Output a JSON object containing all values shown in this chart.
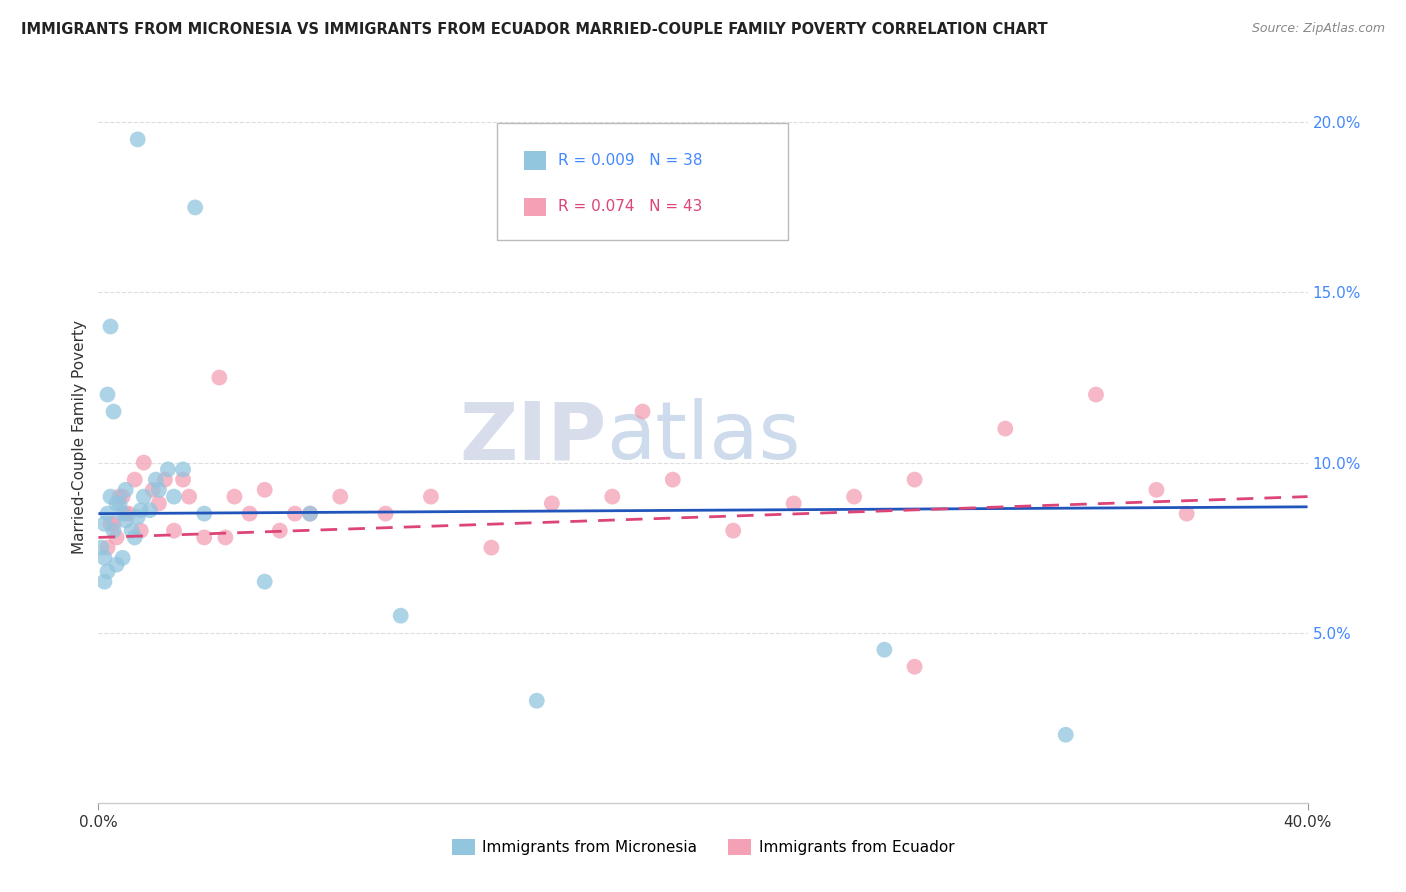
{
  "title": "IMMIGRANTS FROM MICRONESIA VS IMMIGRANTS FROM ECUADOR MARRIED-COUPLE FAMILY POVERTY CORRELATION CHART",
  "source": "Source: ZipAtlas.com",
  "ylabel": "Married-Couple Family Poverty",
  "xlim": [
    0.0,
    40.0
  ],
  "ylim": [
    0.0,
    21.5
  ],
  "yticks": [
    5.0,
    10.0,
    15.0,
    20.0
  ],
  "color_blue": "#92c5de",
  "color_pink": "#f4a0b5",
  "color_line_blue": "#2255bb",
  "color_line_pink": "#dd4477",
  "watermark_zip": "ZIP",
  "watermark_atlas": "atlas",
  "micronesia_x": [
    1.3,
    3.2,
    0.3,
    0.5,
    0.7,
    0.9,
    1.1,
    1.5,
    1.7,
    2.0,
    1.2,
    2.3,
    0.8,
    0.6,
    1.4,
    1.9,
    2.8,
    1.3,
    0.4,
    0.5,
    2.5,
    0.2,
    0.3,
    0.4,
    0.2,
    0.6,
    0.8,
    0.9,
    3.5,
    5.5,
    7.0,
    10.0,
    14.5,
    26.0,
    32.0,
    0.1,
    0.2,
    0.3
  ],
  "micronesia_y": [
    19.5,
    17.5,
    12.0,
    11.5,
    8.8,
    8.3,
    8.0,
    9.0,
    8.6,
    9.2,
    7.8,
    9.8,
    7.2,
    7.0,
    8.6,
    9.5,
    9.8,
    8.4,
    14.0,
    8.0,
    9.0,
    8.2,
    8.5,
    9.0,
    6.5,
    8.8,
    8.5,
    9.2,
    8.5,
    6.5,
    8.5,
    5.5,
    3.0,
    4.5,
    2.0,
    7.5,
    7.2,
    6.8
  ],
  "ecuador_x": [
    0.4,
    0.6,
    0.8,
    1.0,
    1.2,
    1.5,
    1.8,
    2.0,
    2.2,
    2.5,
    3.0,
    3.5,
    4.0,
    4.5,
    5.0,
    5.5,
    6.0,
    7.0,
    8.0,
    9.5,
    11.0,
    13.0,
    15.0,
    17.0,
    19.0,
    21.0,
    23.0,
    25.0,
    27.0,
    30.0,
    33.0,
    36.0,
    0.3,
    0.5,
    0.7,
    0.9,
    1.4,
    2.8,
    4.2,
    6.5,
    18.0,
    27.0,
    35.0
  ],
  "ecuador_y": [
    8.2,
    7.8,
    9.0,
    8.5,
    9.5,
    10.0,
    9.2,
    8.8,
    9.5,
    8.0,
    9.0,
    7.8,
    12.5,
    9.0,
    8.5,
    9.2,
    8.0,
    8.5,
    9.0,
    8.5,
    9.0,
    7.5,
    8.8,
    9.0,
    9.5,
    8.0,
    8.8,
    9.0,
    9.5,
    11.0,
    12.0,
    8.5,
    7.5,
    8.2,
    9.0,
    8.5,
    8.0,
    9.5,
    7.8,
    8.5,
    11.5,
    4.0,
    9.2
  ],
  "blue_line_x0": 0.0,
  "blue_line_x1": 40.0,
  "blue_line_y0": 8.5,
  "blue_line_y1": 8.7,
  "pink_line_x0": 0.0,
  "pink_line_x1": 40.0,
  "pink_line_y0": 7.8,
  "pink_line_y1": 9.0
}
